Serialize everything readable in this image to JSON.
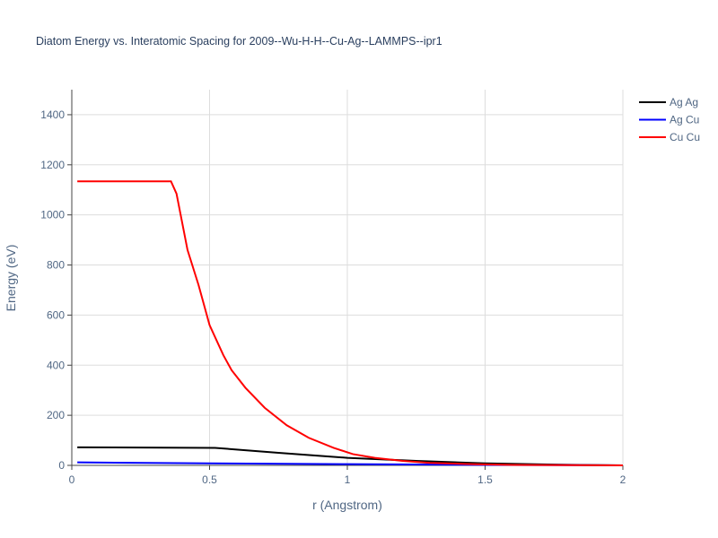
{
  "chart_data": {
    "type": "line",
    "title": "Diatom Energy vs. Interatomic Spacing for 2009--Wu-H-H--Cu-Ag--LAMMPS--ipr1",
    "x_label": "r (Angstrom)",
    "y_label": "Energy (eV)",
    "xlim": [
      0,
      2
    ],
    "ylim": [
      0,
      1500
    ],
    "xticks": [
      0,
      0.5,
      1,
      1.5,
      2
    ],
    "yticks": [
      0,
      200,
      400,
      600,
      800,
      1000,
      1200,
      1400
    ],
    "grid": true,
    "legend": "right",
    "series": [
      {
        "name": "Ag Ag",
        "color": "#000000",
        "x": [
          0.02,
          0.52,
          0.75,
          1.0,
          1.25,
          1.5,
          1.75,
          2.0
        ],
        "values": [
          72,
          70,
          50,
          30,
          18,
          8,
          3,
          0
        ]
      },
      {
        "name": "Ag Cu",
        "color": "#0000ff",
        "x": [
          0.02,
          0.5,
          1.0,
          1.5,
          2.0
        ],
        "values": [
          12,
          8,
          5,
          2,
          0
        ]
      },
      {
        "name": "Cu Cu",
        "color": "#ff0000",
        "x": [
          0.02,
          0.36,
          0.38,
          0.42,
          0.46,
          0.5,
          0.55,
          0.58,
          0.63,
          0.7,
          0.78,
          0.86,
          0.95,
          1.02,
          1.1,
          1.2,
          1.3,
          1.45,
          1.6,
          2.0
        ],
        "values": [
          1134,
          1134,
          1085,
          860,
          720,
          560,
          440,
          380,
          310,
          230,
          160,
          110,
          70,
          45,
          30,
          18,
          10,
          5,
          2,
          0
        ]
      }
    ]
  }
}
